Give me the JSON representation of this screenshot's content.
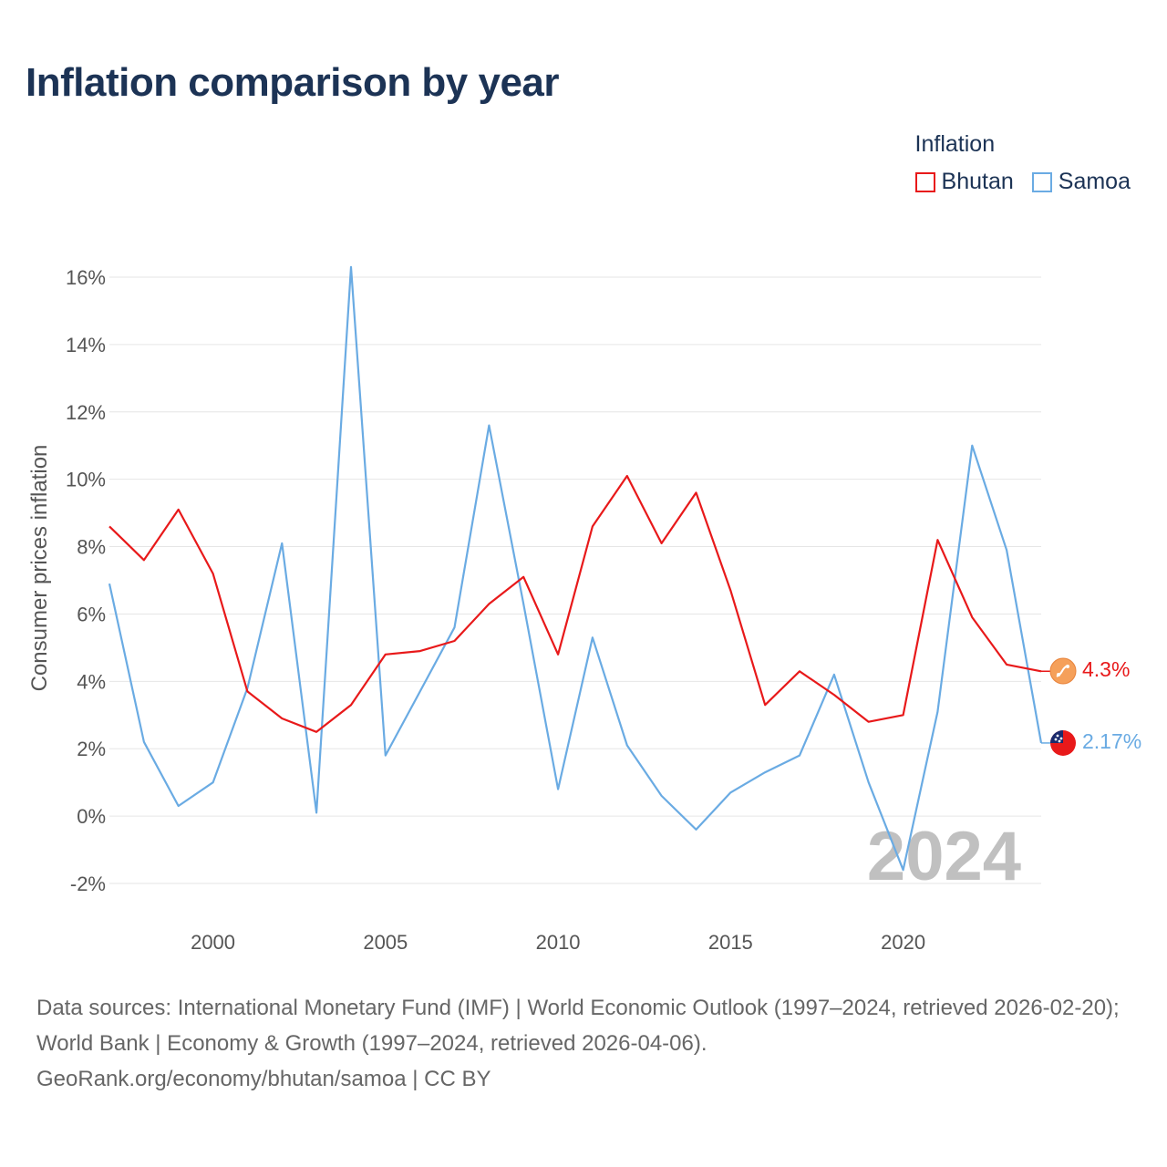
{
  "title": "Inflation comparison by year",
  "legend": {
    "title": "Inflation",
    "items": [
      {
        "label": "Bhutan",
        "color": "#e8191a"
      },
      {
        "label": "Samoa",
        "color": "#6aabe3"
      }
    ]
  },
  "footer": {
    "line1": "Data sources: International Monetary Fund (IMF) | World Economic Outlook (1997–2024, retrieved 2026-02-20); World Bank | Economy & Growth (1997–2024, retrieved 2026-04-06).",
    "line2": "GeoRank.org/economy/bhutan/samoa | CC BY"
  },
  "chart_data": {
    "type": "line",
    "title": "Inflation comparison by year",
    "xlabel": "",
    "ylabel": "Consumer prices inflation",
    "xlim": [
      1997,
      2024
    ],
    "ylim": [
      -3,
      16.5
    ],
    "y_ticks": [
      -2,
      0,
      2,
      4,
      6,
      8,
      10,
      12,
      14,
      16
    ],
    "y_tick_labels": [
      "-2%",
      "0%",
      "2%",
      "4%",
      "6%",
      "8%",
      "10%",
      "12%",
      "14%",
      "16%"
    ],
    "x_ticks": [
      2000,
      2005,
      2010,
      2015,
      2020
    ],
    "x_tick_labels": [
      "2000",
      "2005",
      "2010",
      "2015",
      "2020"
    ],
    "grid": true,
    "legend_position": "top-right",
    "current_year": "2024",
    "x": [
      1997,
      1998,
      1999,
      2000,
      2001,
      2002,
      2003,
      2004,
      2005,
      2006,
      2007,
      2008,
      2009,
      2010,
      2011,
      2012,
      2013,
      2014,
      2015,
      2016,
      2017,
      2018,
      2019,
      2020,
      2021,
      2022,
      2023,
      2024
    ],
    "series": [
      {
        "name": "Bhutan",
        "color": "#e8191a",
        "end_label": "4.3%",
        "values": [
          8.6,
          7.6,
          9.1,
          7.2,
          3.7,
          2.9,
          2.5,
          3.3,
          4.8,
          4.9,
          5.2,
          6.3,
          7.1,
          4.8,
          8.6,
          10.1,
          8.1,
          9.6,
          6.7,
          3.3,
          4.3,
          3.6,
          2.8,
          3.0,
          8.2,
          5.9,
          4.5,
          4.3
        ]
      },
      {
        "name": "Samoa",
        "color": "#6aabe3",
        "end_label": "2.17%",
        "values": [
          6.9,
          2.2,
          0.3,
          1.0,
          3.8,
          8.1,
          0.1,
          16.3,
          1.8,
          3.7,
          5.6,
          11.6,
          6.3,
          0.8,
          5.3,
          2.1,
          0.6,
          -0.4,
          0.7,
          1.3,
          1.8,
          4.2,
          1.0,
          -1.6,
          3.1,
          11.0,
          7.9,
          2.17
        ]
      }
    ]
  }
}
